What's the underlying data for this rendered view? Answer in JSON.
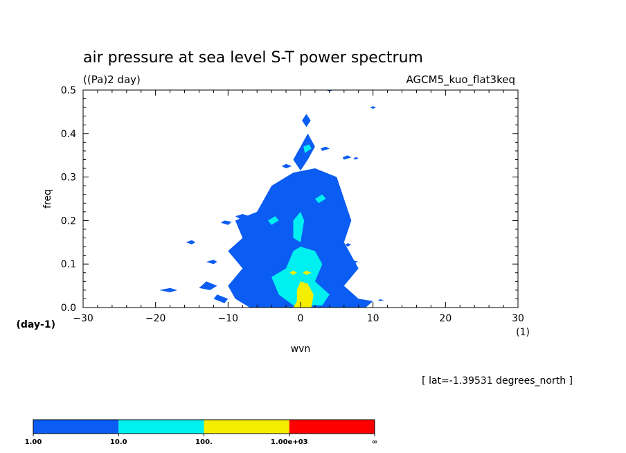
{
  "chart_data": {
    "type": "heatmap",
    "title": "air pressure at sea level S-T power spectrum",
    "units_label": "((Pa)2 day)",
    "experiment": "AGCM5_kuo_flat3keq",
    "xlabel": "wvn",
    "ylabel": "freq",
    "x_unit": "(1)",
    "y_unit": "(day-1)",
    "annotation": "[ lat=-1.39531 degrees_north ]",
    "xlim": [
      -30,
      30
    ],
    "ylim": [
      0,
      0.5
    ],
    "x_ticks": [
      -30,
      -20,
      -10,
      0,
      10,
      20,
      30
    ],
    "x_tick_labels": [
      "−30",
      "−20",
      "−10",
      "0",
      "10",
      "20",
      "30"
    ],
    "y_ticks": [
      0,
      0.1,
      0.2,
      0.3,
      0.4,
      0.5
    ],
    "y_tick_labels": [
      "0.0",
      "0.1",
      "0.2",
      "0.3",
      "0.4",
      "0.5"
    ],
    "levels": [
      {
        "label": "1.00",
        "color": "#0b5cf2"
      },
      {
        "label": "10.0",
        "color": "#00f0f2"
      },
      {
        "label": "100.",
        "color": "#f4ef00"
      },
      {
        "label": "1.00e+03",
        "color": "#ff0000"
      }
    ],
    "colorbar_end_label": "∞",
    "regions": [
      {
        "level": 1,
        "points": [
          [
            -7,
            0
          ],
          [
            9,
            0
          ],
          [
            10,
            0.015
          ],
          [
            8,
            0.02
          ],
          [
            6,
            0.05
          ],
          [
            8,
            0.09
          ],
          [
            6,
            0.15
          ],
          [
            7,
            0.2
          ],
          [
            6,
            0.25
          ],
          [
            5,
            0.3
          ],
          [
            2,
            0.32
          ],
          [
            -1,
            0.31
          ],
          [
            -4,
            0.28
          ],
          [
            -6,
            0.22
          ],
          [
            -9,
            0.2
          ],
          [
            -8,
            0.16
          ],
          [
            -10,
            0.13
          ],
          [
            -8,
            0.09
          ],
          [
            -10,
            0.05
          ],
          [
            -9,
            0.02
          ]
        ]
      },
      {
        "level": 1,
        "points": [
          [
            -10.5,
            0.01
          ],
          [
            -12,
            0.02
          ],
          [
            -11.5,
            0.03
          ],
          [
            -10,
            0.02
          ]
        ]
      },
      {
        "level": 1,
        "points": [
          [
            -12.5,
            0.04
          ],
          [
            -14,
            0.045
          ],
          [
            -13,
            0.06
          ],
          [
            -11.5,
            0.05
          ]
        ]
      },
      {
        "level": 1,
        "points": [
          [
            -18,
            0.035
          ],
          [
            -19.5,
            0.04
          ],
          [
            -18,
            0.045
          ],
          [
            -17,
            0.04
          ]
        ]
      },
      {
        "level": 1,
        "points": [
          [
            -10,
            0.19
          ],
          [
            -11,
            0.195
          ],
          [
            -10.5,
            0.2
          ],
          [
            -9.5,
            0.197
          ]
        ]
      },
      {
        "level": 1,
        "points": [
          [
            -8,
            0.2
          ],
          [
            -9,
            0.21
          ],
          [
            -8,
            0.215
          ],
          [
            -7,
            0.21
          ]
        ]
      },
      {
        "level": 1,
        "points": [
          [
            -15,
            0.145
          ],
          [
            -15.8,
            0.15
          ],
          [
            -15,
            0.155
          ],
          [
            -14.5,
            0.15
          ]
        ]
      },
      {
        "level": 1,
        "points": [
          [
            -12,
            0.1
          ],
          [
            -13,
            0.105
          ],
          [
            -12,
            0.11
          ],
          [
            -11.5,
            0.105
          ]
        ]
      },
      {
        "level": 1,
        "points": [
          [
            1,
            0.34
          ],
          [
            2,
            0.37
          ],
          [
            1,
            0.4
          ],
          [
            0,
            0.37
          ],
          [
            -1,
            0.34
          ],
          [
            0,
            0.315
          ]
        ]
      },
      {
        "level": 1,
        "points": [
          [
            0.8,
            0.415
          ],
          [
            1.4,
            0.43
          ],
          [
            0.8,
            0.445
          ],
          [
            0.2,
            0.43
          ]
        ]
      },
      {
        "level": 1,
        "points": [
          [
            3.5,
            0.5
          ],
          [
            4,
            0.497
          ],
          [
            4.5,
            0.5
          ]
        ]
      },
      {
        "level": 1,
        "points": [
          [
            10,
            0.457
          ],
          [
            10.4,
            0.46
          ],
          [
            10,
            0.463
          ],
          [
            9.6,
            0.46
          ]
        ]
      },
      {
        "level": 1,
        "points": [
          [
            3,
            0.36
          ],
          [
            4,
            0.365
          ],
          [
            3.5,
            0.37
          ],
          [
            2.8,
            0.366
          ]
        ]
      },
      {
        "level": 1,
        "points": [
          [
            6,
            0.34
          ],
          [
            7,
            0.345
          ],
          [
            6.5,
            0.35
          ],
          [
            5.8,
            0.345
          ]
        ]
      },
      {
        "level": 1,
        "points": [
          [
            7.5,
            0.34
          ],
          [
            8,
            0.343
          ],
          [
            7.7,
            0.346
          ],
          [
            7.3,
            0.343
          ]
        ]
      },
      {
        "level": 1,
        "points": [
          [
            -2,
            0.32
          ],
          [
            -1.2,
            0.325
          ],
          [
            -2,
            0.33
          ],
          [
            -2.6,
            0.325
          ]
        ]
      },
      {
        "level": 1,
        "points": [
          [
            7,
            0.1
          ],
          [
            8,
            0.105
          ],
          [
            7,
            0.11
          ],
          [
            6.5,
            0.105
          ]
        ]
      },
      {
        "level": 1,
        "points": [
          [
            6.5,
            0.14
          ],
          [
            7,
            0.145
          ],
          [
            6.5,
            0.148
          ],
          [
            6.2,
            0.144
          ]
        ]
      },
      {
        "level": 1,
        "points": [
          [
            11,
            0.015
          ],
          [
            11.5,
            0.017
          ],
          [
            11,
            0.019
          ],
          [
            10.7,
            0.017
          ]
        ]
      },
      {
        "level": 2,
        "points": [
          [
            -3,
            0.03
          ],
          [
            -4,
            0.07
          ],
          [
            -2,
            0.09
          ],
          [
            -1,
            0.13
          ],
          [
            0,
            0.14
          ],
          [
            2,
            0.13
          ],
          [
            3,
            0.1
          ],
          [
            2,
            0.06
          ],
          [
            4,
            0.03
          ],
          [
            3,
            0.005
          ],
          [
            -1,
            0.005
          ]
        ]
      },
      {
        "level": 2,
        "points": [
          [
            -1,
            0.16
          ],
          [
            0,
            0.15
          ],
          [
            0.5,
            0.2
          ],
          [
            0,
            0.22
          ],
          [
            -1,
            0.2
          ]
        ]
      },
      {
        "level": 2,
        "points": [
          [
            -4,
            0.19
          ],
          [
            -3,
            0.2
          ],
          [
            -3.5,
            0.21
          ],
          [
            -4.5,
            0.2
          ]
        ]
      },
      {
        "level": 2,
        "points": [
          [
            2.5,
            0.24
          ],
          [
            3.5,
            0.25
          ],
          [
            3,
            0.26
          ],
          [
            2,
            0.25
          ]
        ]
      },
      {
        "level": 2,
        "points": [
          [
            1,
            0.36
          ],
          [
            1.5,
            0.365
          ],
          [
            1.2,
            0.375
          ],
          [
            0.4,
            0.37
          ],
          [
            0.6,
            0.355
          ]
        ]
      },
      {
        "level": 2,
        "points": [
          [
            -3.5,
            0.06
          ],
          [
            -2.5,
            0.07
          ],
          [
            -3,
            0.08
          ],
          [
            -4,
            0.07
          ]
        ]
      },
      {
        "level": 3,
        "points": [
          [
            -1,
            0
          ],
          [
            1.5,
            0
          ],
          [
            1.8,
            0.03
          ],
          [
            1,
            0.055
          ],
          [
            0,
            0.06
          ],
          [
            -0.5,
            0.04
          ],
          [
            -0.5,
            0.015
          ]
        ]
      },
      {
        "level": 3,
        "points": [
          [
            -1,
            0.075
          ],
          [
            -0.5,
            0.08
          ],
          [
            -1,
            0.085
          ],
          [
            -1.5,
            0.08
          ]
        ]
      },
      {
        "level": 3,
        "points": [
          [
            0.8,
            0.075
          ],
          [
            1.5,
            0.08
          ],
          [
            0.8,
            0.085
          ],
          [
            0.3,
            0.08
          ]
        ]
      }
    ]
  }
}
